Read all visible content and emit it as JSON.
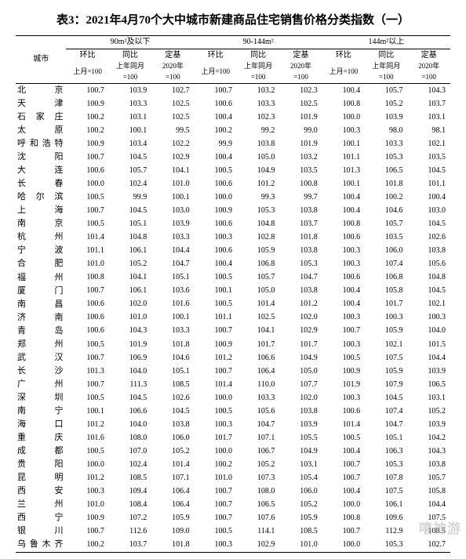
{
  "title": "表3：2021年4月70个大中城市新建商品住宅销售价格分类指数（一）",
  "watermark": "嘻神游",
  "header": {
    "city": "城市",
    "groups": [
      "90m²及以下",
      "90-144m²",
      "144m²以上"
    ],
    "sub": [
      "环比",
      "同比",
      "定基"
    ],
    "base": {
      "0": "上月=100",
      "1a": "上年同月",
      "1b": "=100",
      "2a": "2020年",
      "2b": "=100"
    }
  },
  "style": {
    "font_family": "SimSun",
    "title_fontsize": 15,
    "body_fontsize": 10,
    "rule_color": "#000000",
    "background": "#ffffff",
    "text_color": "#000000",
    "watermark_color": "rgba(0,0,0,0.16)"
  },
  "columns": [
    "城市",
    "90-_环比",
    "90-_同比",
    "90-_定基",
    "90-144_环比",
    "90-144_同比",
    "90-144_定基",
    "144+_环比",
    "144+_同比",
    "144+_定基"
  ],
  "rows": [
    [
      "北　京",
      "100.7",
      "103.9",
      "102.7",
      "100.7",
      "103.2",
      "102.3",
      "100.4",
      "105.7",
      "104.3"
    ],
    [
      "天　津",
      "100.9",
      "103.3",
      "102.5",
      "100.6",
      "103.3",
      "102.5",
      "100.8",
      "105.2",
      "103.7"
    ],
    [
      "石家庄",
      "100.2",
      "103.1",
      "102.5",
      "100.4",
      "102.3",
      "101.9",
      "100.0",
      "103.9",
      "103.1"
    ],
    [
      "太　原",
      "100.2",
      "100.1",
      "99.5",
      "100.2",
      "99.2",
      "99.0",
      "100.3",
      "98.0",
      "98.1"
    ],
    [
      "呼和浩特",
      "100.9",
      "103.4",
      "102.2",
      "99.9",
      "103.8",
      "101.9",
      "100.1",
      "103.3",
      "102.1"
    ],
    [
      "沈　阳",
      "100.7",
      "104.5",
      "102.9",
      "100.4",
      "105.0",
      "103.2",
      "101.1",
      "105.3",
      "103.5"
    ],
    [
      "大　连",
      "100.6",
      "105.7",
      "104.1",
      "100.5",
      "104.9",
      "103.5",
      "101.3",
      "106.5",
      "104.5"
    ],
    [
      "长　春",
      "100.0",
      "102.4",
      "101.0",
      "100.6",
      "101.2",
      "100.8",
      "100.1",
      "101.8",
      "101.1"
    ],
    [
      "哈尔滨",
      "100.5",
      "99.9",
      "100.1",
      "100.0",
      "99.3",
      "99.7",
      "100.4",
      "100.2",
      "100.4"
    ],
    [
      "上　海",
      "100.7",
      "104.5",
      "103.0",
      "100.9",
      "105.3",
      "103.8",
      "100.4",
      "104.6",
      "103.0"
    ],
    [
      "南　京",
      "100.5",
      "105.1",
      "103.9",
      "100.6",
      "104.8",
      "103.7",
      "100.8",
      "105.7",
      "104.5"
    ],
    [
      "杭　州",
      "101.4",
      "104.8",
      "103.3",
      "100.3",
      "102.8",
      "101.8",
      "100.6",
      "103.5",
      "102.6"
    ],
    [
      "宁　波",
      "101.1",
      "106.1",
      "104.4",
      "100.6",
      "105.9",
      "103.8",
      "100.3",
      "106.0",
      "103.8"
    ],
    [
      "合　肥",
      "101.0",
      "105.2",
      "104.7",
      "100.4",
      "106.8",
      "105.3",
      "100.3",
      "107.4",
      "105.6"
    ],
    [
      "福　州",
      "100.8",
      "104.1",
      "105.1",
      "100.5",
      "105.7",
      "104.7",
      "100.6",
      "106.8",
      "104.8"
    ],
    [
      "厦　门",
      "100.7",
      "106.1",
      "103.6",
      "100.1",
      "105.0",
      "103.8",
      "100.4",
      "105.8",
      "104.5"
    ],
    [
      "南　昌",
      "100.6",
      "102.0",
      "101.6",
      "100.5",
      "101.4",
      "101.2",
      "100.4",
      "101.7",
      "102.1"
    ],
    [
      "济　南",
      "100.6",
      "101.0",
      "100.1",
      "101.1",
      "102.5",
      "102.0",
      "100.3",
      "100.3",
      "100.3"
    ],
    [
      "青　岛",
      "100.6",
      "104.3",
      "103.3",
      "100.7",
      "104.1",
      "102.9",
      "100.7",
      "105.9",
      "104.0"
    ],
    [
      "郑　州",
      "100.5",
      "101.9",
      "101.8",
      "100.9",
      "101.7",
      "101.7",
      "100.3",
      "102.1",
      "101.5"
    ],
    [
      "武　汉",
      "100.7",
      "106.9",
      "104.6",
      "101.2",
      "106.6",
      "104.9",
      "100.5",
      "107.5",
      "104.4"
    ],
    [
      "长　沙",
      "101.3",
      "104.0",
      "105.1",
      "100.7",
      "106.4",
      "105.0",
      "100.9",
      "105.9",
      "103.9"
    ],
    [
      "广　州",
      "100.7",
      "111.3",
      "108.5",
      "101.4",
      "110.0",
      "107.7",
      "101.9",
      "107.9",
      "106.5"
    ],
    [
      "深　圳",
      "100.5",
      "104.5",
      "102.6",
      "100.0",
      "103.3",
      "102.0",
      "100.3",
      "104.5",
      "103.1"
    ],
    [
      "南　宁",
      "100.1",
      "106.6",
      "104.5",
      "100.5",
      "105.6",
      "103.8",
      "100.6",
      "107.4",
      "105.2"
    ],
    [
      "海　口",
      "101.2",
      "104.0",
      "103.8",
      "100.3",
      "104.7",
      "103.9",
      "101.4",
      "104.7",
      "103.9"
    ],
    [
      "重　庆",
      "101.6",
      "108.0",
      "106.0",
      "101.7",
      "107.1",
      "105.5",
      "100.5",
      "105.1",
      "104.2"
    ],
    [
      "成　都",
      "100.5",
      "107.0",
      "105.2",
      "100.0",
      "106.7",
      "104.9",
      "100.4",
      "106.3",
      "104.3"
    ],
    [
      "贵　阳",
      "100.0",
      "102.4",
      "101.4",
      "100.2",
      "105.2",
      "103.1",
      "100.7",
      "105.3",
      "103.8"
    ],
    [
      "昆　明",
      "101.2",
      "108.5",
      "107.1",
      "101.0",
      "107.3",
      "105.4",
      "100.7",
      "107.8",
      "105.7"
    ],
    [
      "西　安",
      "100.3",
      "109.4",
      "106.4",
      "100.7",
      "108.0",
      "106.0",
      "100.4",
      "107.5",
      "105.8"
    ],
    [
      "兰　州",
      "101.0",
      "108.4",
      "106.4",
      "100.7",
      "106.5",
      "105.2",
      "100.0",
      "106.1",
      "104.4"
    ],
    [
      "西　宁",
      "100.9",
      "107.2",
      "105.9",
      "100.7",
      "107.6",
      "105.9",
      "100.8",
      "109.6",
      "107.5"
    ],
    [
      "银　川",
      "100.7",
      "112.6",
      "109.0",
      "100.5",
      "114.1",
      "108.5",
      "100.7",
      "112.9",
      "108.5"
    ],
    [
      "乌鲁木齐",
      "100.2",
      "103.7",
      "101.8",
      "100.3",
      "102.9",
      "101.0",
      "100.0",
      "105.3",
      "102.7"
    ]
  ]
}
